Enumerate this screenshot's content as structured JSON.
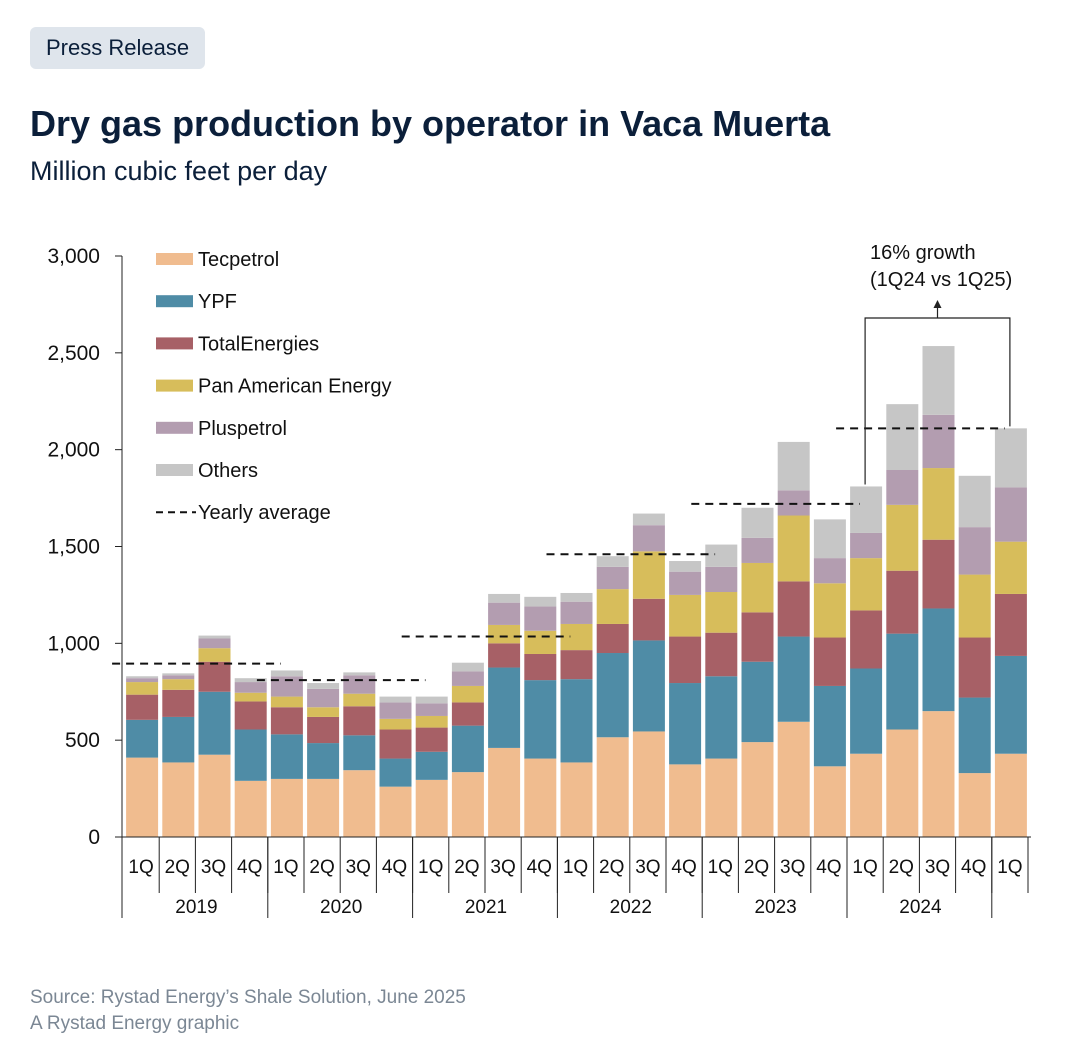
{
  "header": {
    "badge": "Press Release",
    "title": "Dry gas production by operator in Vaca Muerta",
    "subtitle": "Million cubic feet per day"
  },
  "footer": {
    "source": "Source: Rystad Energy’s Shale Solution, June 2025",
    "credit": "A Rystad Energy graphic"
  },
  "chart_data": {
    "type": "bar",
    "stacked": true,
    "title": "Dry gas production by operator in Vaca Muerta",
    "ylabel": "Million cubic feet per day",
    "ylim": [
      0,
      3000
    ],
    "yticks": [
      0,
      500,
      1000,
      1500,
      2000,
      2500,
      3000
    ],
    "ytick_labels": [
      "0",
      "500",
      "1,000",
      "1,500",
      "2,000",
      "2,500",
      "3,000"
    ],
    "categories": [
      "1Q",
      "2Q",
      "3Q",
      "4Q",
      "1Q",
      "2Q",
      "3Q",
      "4Q",
      "1Q",
      "2Q",
      "3Q",
      "4Q",
      "1Q",
      "2Q",
      "3Q",
      "4Q",
      "1Q",
      "2Q",
      "3Q",
      "4Q",
      "1Q",
      "2Q",
      "3Q",
      "4Q",
      "1Q"
    ],
    "year_groups": [
      {
        "label": "2019",
        "start": 0,
        "end": 3
      },
      {
        "label": "2020",
        "start": 4,
        "end": 7
      },
      {
        "label": "2021",
        "start": 8,
        "end": 11
      },
      {
        "label": "2022",
        "start": 12,
        "end": 15
      },
      {
        "label": "2023",
        "start": 16,
        "end": 19
      },
      {
        "label": "2024",
        "start": 20,
        "end": 23
      }
    ],
    "series": [
      {
        "name": "Tecpetrol",
        "color": "#f0bc8f",
        "values": [
          410,
          385,
          425,
          290,
          300,
          300,
          345,
          260,
          295,
          335,
          460,
          405,
          385,
          515,
          545,
          375,
          405,
          490,
          595,
          365,
          430,
          555,
          650,
          330,
          430
        ]
      },
      {
        "name": "YPF",
        "color": "#4f8ca6",
        "values": [
          195,
          235,
          325,
          265,
          230,
          185,
          180,
          145,
          145,
          240,
          415,
          405,
          430,
          435,
          470,
          420,
          425,
          415,
          440,
          415,
          440,
          495,
          530,
          390,
          505
        ]
      },
      {
        "name": "TotalEnergies",
        "color": "#a76066",
        "values": [
          130,
          140,
          155,
          145,
          140,
          135,
          150,
          150,
          125,
          120,
          125,
          135,
          150,
          150,
          215,
          240,
          225,
          255,
          285,
          250,
          300,
          325,
          355,
          310,
          320
        ]
      },
      {
        "name": "Pan American Energy",
        "color": "#d7bd5b",
        "values": [
          65,
          55,
          70,
          45,
          55,
          50,
          65,
          55,
          60,
          85,
          95,
          120,
          135,
          180,
          245,
          215,
          210,
          255,
          340,
          280,
          270,
          340,
          370,
          325,
          270
        ]
      },
      {
        "name": "Pluspetrol",
        "color": "#b39db0",
        "values": [
          20,
          20,
          50,
          55,
          105,
          95,
          95,
          85,
          65,
          75,
          115,
          125,
          115,
          115,
          135,
          120,
          130,
          130,
          130,
          130,
          130,
          180,
          275,
          245,
          280
        ]
      },
      {
        "name": "Others",
        "color": "#c6c6c6",
        "values": [
          10,
          10,
          15,
          20,
          30,
          30,
          15,
          30,
          35,
          45,
          45,
          50,
          45,
          55,
          60,
          55,
          115,
          155,
          250,
          200,
          240,
          340,
          355,
          265,
          305
        ]
      }
    ],
    "yearly_average": [
      {
        "label": "2019",
        "value": 895
      },
      {
        "label": "2020",
        "value": 810
      },
      {
        "label": "2021",
        "value": 1035
      },
      {
        "label": "2022",
        "value": 1460
      },
      {
        "label": "2023",
        "value": 1720
      },
      {
        "label": "2024",
        "value": 2110
      }
    ],
    "legend": {
      "position": "top-left",
      "average_label": "Yearly average"
    },
    "annotation": {
      "line1": "16% growth",
      "line2": "(1Q24 vs 1Q25)",
      "from_index": 20,
      "to_index": 24
    },
    "grid": false
  }
}
